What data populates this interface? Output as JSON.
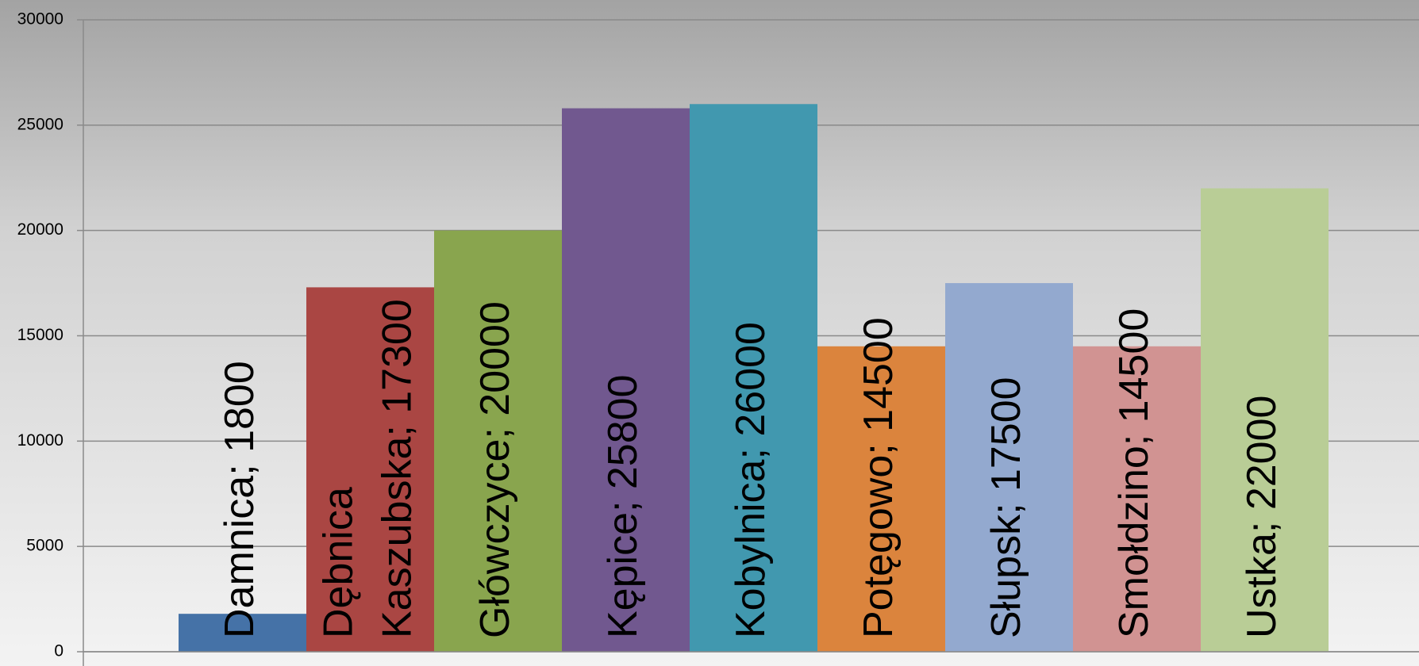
{
  "chart_data": {
    "type": "bar",
    "categories": [
      "Damnica",
      "Dębnica Kaszubska",
      "Główczyce",
      "Kępice",
      "Kobylnica",
      "Potęgowo",
      "Słupsk",
      "Smołdzino",
      "Ustka"
    ],
    "values": [
      1800,
      17300,
      20000,
      25800,
      26000,
      14500,
      17500,
      14500,
      22000
    ],
    "value_labels": [
      "Damnica; 1800",
      "Dębnica Kaszubska; 17300",
      "Główczyce; 20000",
      "Kępice; 25800",
      "Kobylnica; 26000",
      "Potęgowo; 14500",
      "Słupsk; 17500",
      "Smołdzino; 14500",
      "Ustka; 22000"
    ],
    "colors": [
      "#4572a7",
      "#aa4643",
      "#89a54e",
      "#71588f",
      "#4198af",
      "#db843d",
      "#93a9cf",
      "#d19392",
      "#b9cd96"
    ],
    "ylim": [
      0,
      30000
    ],
    "yticks": [
      0,
      5000,
      10000,
      15000,
      20000,
      25000,
      30000
    ],
    "grid": true
  }
}
